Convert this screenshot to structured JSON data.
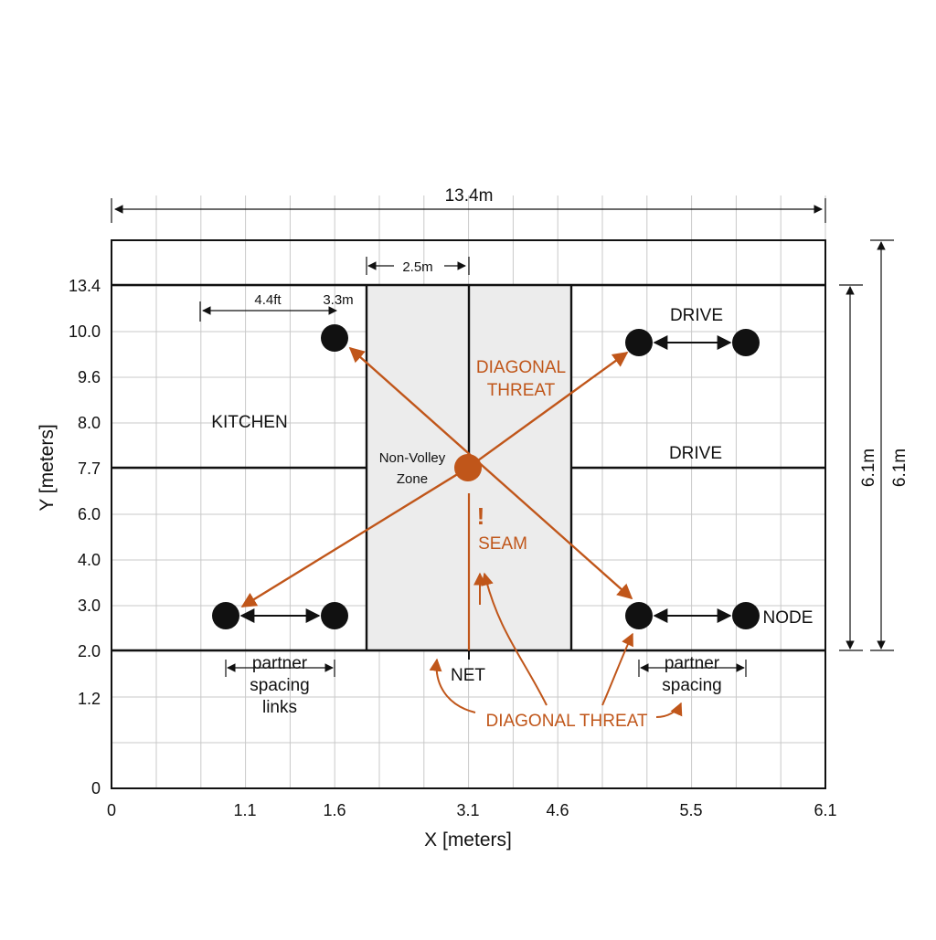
{
  "colors": {
    "accent": "#c0561a",
    "line": "#111111",
    "grid": "#c9c9c9",
    "nvz_fill": "#ececec",
    "node": "#111111"
  },
  "dims": {
    "total_width": "13.4m",
    "nvz_width": "2.5m",
    "left_spacing": "4.4ft",
    "left_offset": "3.3m",
    "inner_height": "6.1m",
    "outer_height": "6.1m"
  },
  "axes": {
    "x_label": "X [meters]",
    "y_label": "Y [meters]",
    "x_ticks": [
      "0",
      "1.1",
      "1.6",
      "3.1",
      "4.6",
      "5.5",
      "6.1"
    ],
    "y_ticks": [
      "13.4",
      "10.0",
      "9.6",
      "8.0",
      "7.7",
      "6.0",
      "4.0",
      "3.0",
      "2.0",
      "1.2",
      "0"
    ]
  },
  "labels": {
    "kitchen": "KITCHEN",
    "drive_top": "DRIVE",
    "drive_mid": "DRIVE",
    "nvz_line1": "Non-Volley",
    "nvz_line2": "Zone",
    "diag_line1": "DIAGONAL",
    "diag_line2": "THREAT",
    "seam_mark": "!",
    "seam": "SEAM",
    "net": "NET",
    "diagonal_threat_bottom": "DIAGONAL THREAT",
    "node": "NODE",
    "left_spacing_1": "partner",
    "left_spacing_2": "spacing",
    "left_spacing_3": "links",
    "right_spacing_1": "partner",
    "right_spacing_2": "spacing"
  }
}
